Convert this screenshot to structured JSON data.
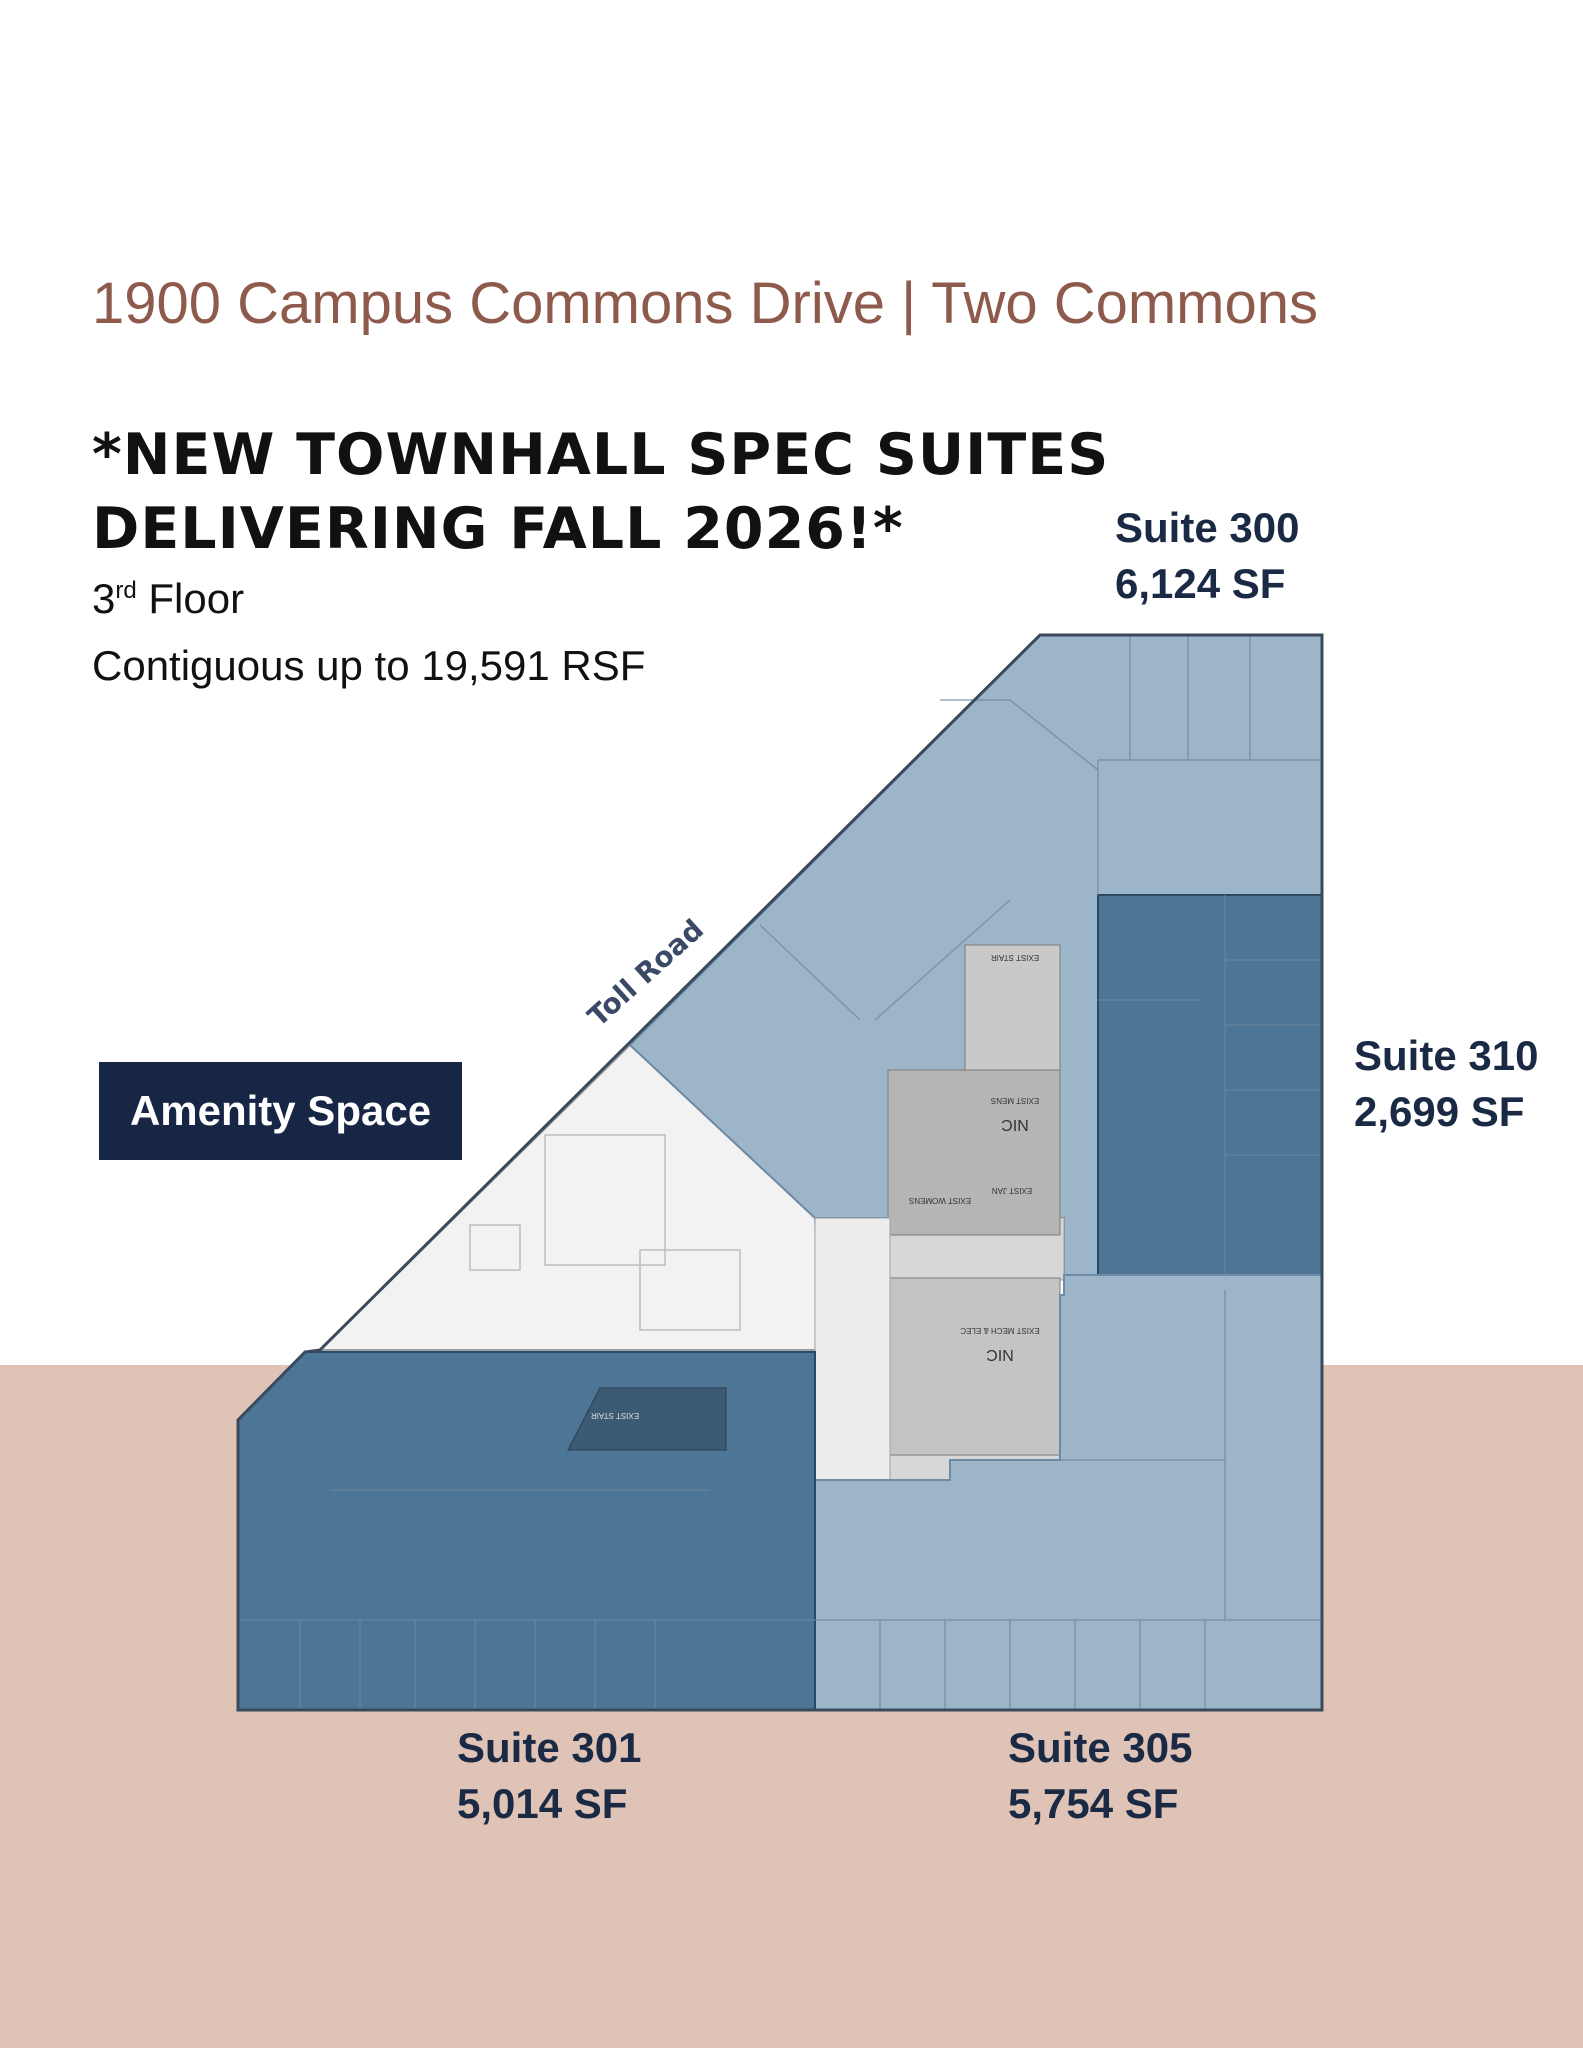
{
  "header": {
    "address": "1900 Campus Commons Drive | Two Commons",
    "headline_line1": "*NEW TOWNHALL SPEC SUITES",
    "headline_line2": "DELIVERING FALL 2026!*",
    "floor_number": "3",
    "floor_suffix": "rd",
    "floor_word": "Floor",
    "contiguous": "Contiguous up to 19,591 RSF"
  },
  "plan": {
    "road_label": "Toll Road",
    "amenity_label": "Amenity Space",
    "nic_label": "NIC",
    "stair_label": "EXIST STAIR",
    "mens_label": "EXIST MENS",
    "womens_label": "EXIST WOMENS",
    "jan_label": "EXIST JAN",
    "mech_label": "EXIST MECH & ELEC"
  },
  "suites": [
    {
      "name": "Suite 300",
      "area": "6,124 SF"
    },
    {
      "name": "Suite 310",
      "area": "2,699 SF"
    },
    {
      "name": "Suite 301",
      "area": "5,014 SF"
    },
    {
      "name": "Suite 305",
      "area": "5,754 SF"
    }
  ],
  "colors": {
    "light_suite": "#9db5c9",
    "dark_suite": "#4d7595",
    "amenity_fill": "#f2f2f2",
    "core_fill": "#c9c9c9",
    "band": "#e0c3b7",
    "address_color": "#8e5a4c",
    "label_color": "#1b2a44"
  }
}
